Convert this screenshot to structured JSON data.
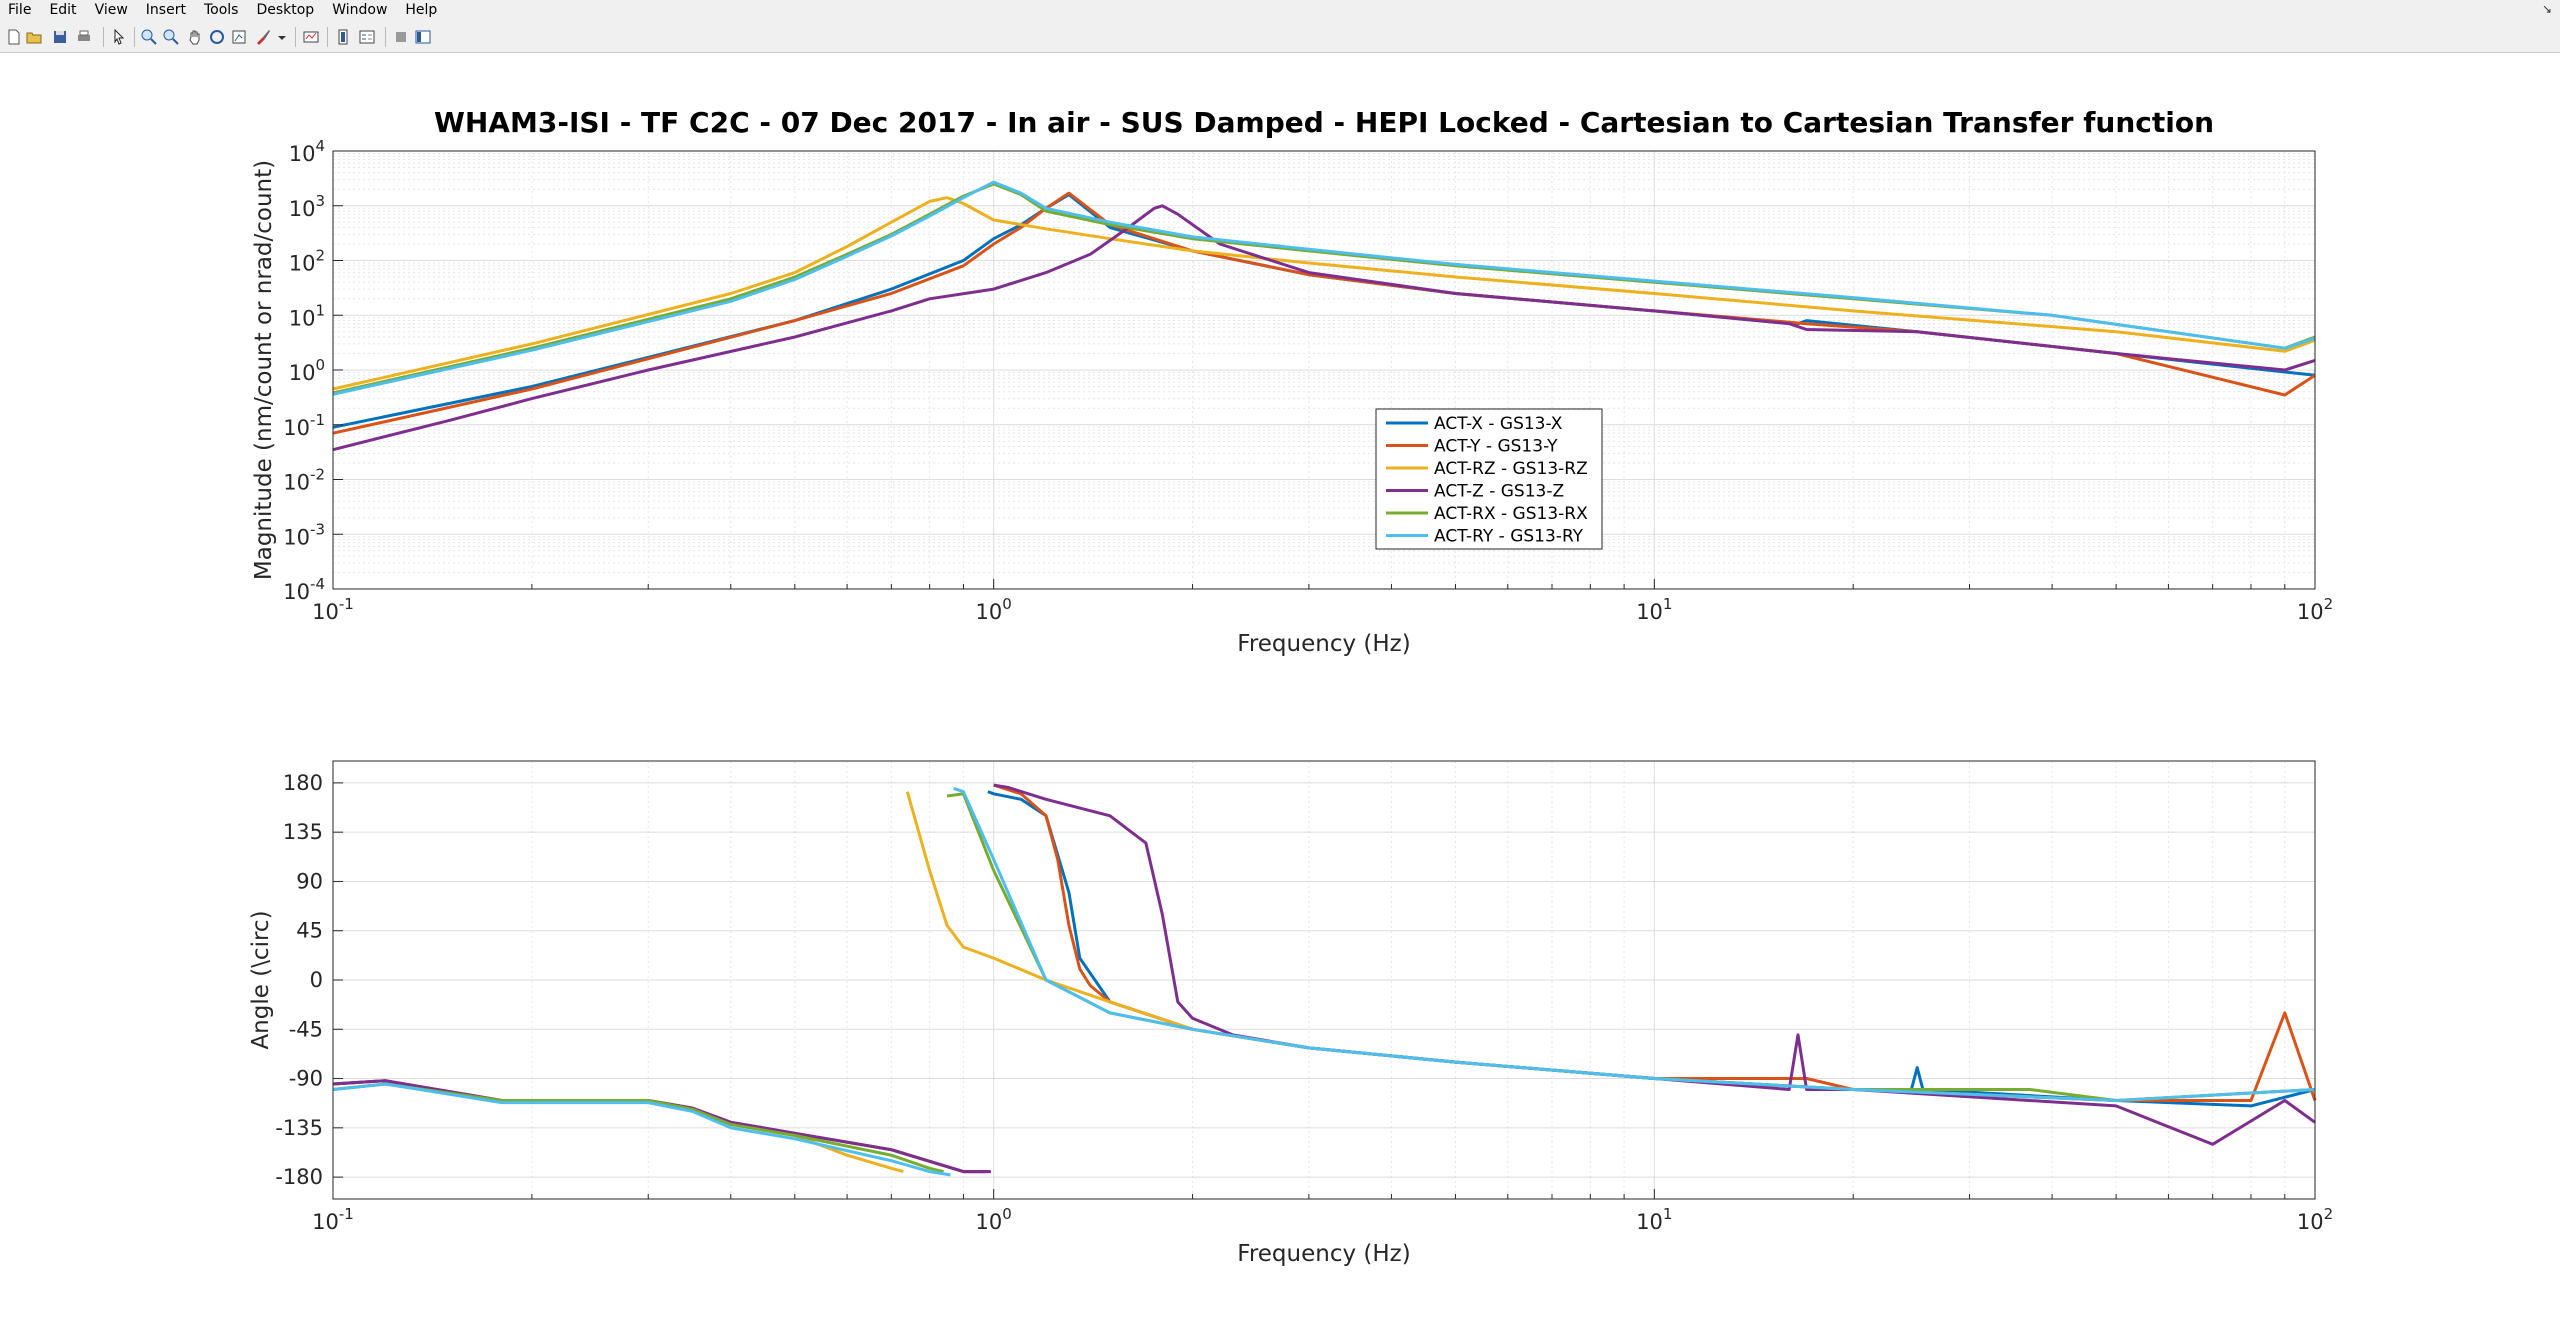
{
  "menubar": {
    "items": [
      {
        "label": "File"
      },
      {
        "label": "Edit"
      },
      {
        "label": "View"
      },
      {
        "label": "Insert"
      },
      {
        "label": "Tools"
      },
      {
        "label": "Desktop"
      },
      {
        "label": "Window"
      },
      {
        "label": "Help"
      }
    ]
  },
  "toolbar": {
    "icons": [
      "new-figure-icon",
      "open-file-icon",
      "save-icon",
      "print-icon",
      "pointer-icon",
      "zoom-in-icon",
      "zoom-out-icon",
      "pan-icon",
      "rotate-icon",
      "data-cursor-icon",
      "brush-icon",
      "link-plot-icon",
      "colorbar-icon",
      "legend-icon",
      "hide-plot-tools-icon",
      "show-plot-tools-icon"
    ]
  },
  "colors": {
    "s1": "#0072bd",
    "s2": "#d95319",
    "s3": "#edb120",
    "s4": "#7e2f8e",
    "s5": "#77ac30",
    "s6": "#4dbeee"
  },
  "chart_data": [
    {
      "type": "line",
      "title": "WHAM3-ISI - TF C2C - 07 Dec 2017 - In air - SUS Damped - HEPI Locked - Cartesian to Cartesian Transfer function",
      "xlabel": "Frequency (Hz)",
      "ylabel": "Magnitude (nm/count or nrad/count)",
      "xscale": "log",
      "yscale": "log",
      "xlim": [
        0.1,
        100
      ],
      "ylim": [
        0.0001,
        10000
      ],
      "xticks": [
        "10^-1",
        "10^0",
        "10^1",
        "10^2"
      ],
      "yticks": [
        "10^-4",
        "10^-3",
        "10^-2",
        "10^-1",
        "10^0",
        "10^1",
        "10^2",
        "10^3",
        "10^4"
      ],
      "grid": "on",
      "legend_position": "center",
      "series": [
        {
          "name": "ACT-X - GS13-X",
          "x": [
            0.1,
            0.2,
            0.5,
            0.7,
            0.9,
            1.0,
            1.1,
            1.2,
            1.3,
            1.5,
            2,
            3,
            5,
            10,
            16.5,
            17,
            25,
            50,
            100
          ],
          "y": [
            0.09,
            0.5,
            8,
            30,
            100,
            250,
            450,
            900,
            1600,
            400,
            150,
            55,
            25,
            12,
            7,
            8,
            5,
            2,
            0.8
          ]
        },
        {
          "name": "ACT-Y - GS13-Y",
          "x": [
            0.1,
            0.2,
            0.5,
            0.7,
            0.9,
            1.0,
            1.1,
            1.2,
            1.3,
            1.5,
            2,
            3,
            5,
            10,
            17,
            25,
            50,
            90,
            100
          ],
          "y": [
            0.07,
            0.45,
            8,
            25,
            80,
            200,
            400,
            900,
            1700,
            450,
            150,
            55,
            25,
            12,
            7,
            5,
            2,
            0.35,
            0.8
          ]
        },
        {
          "name": "ACT-RZ - GS13-RZ",
          "x": [
            0.1,
            0.2,
            0.4,
            0.5,
            0.6,
            0.7,
            0.8,
            0.85,
            0.9,
            1.0,
            1.2,
            1.5,
            2,
            3,
            5,
            10,
            20,
            50,
            90,
            100
          ],
          "y": [
            0.45,
            3,
            25,
            60,
            180,
            500,
            1200,
            1400,
            1100,
            550,
            380,
            250,
            150,
            90,
            50,
            25,
            12,
            5,
            2.2,
            3.5
          ]
        },
        {
          "name": "ACT-Z - GS13-Z",
          "x": [
            0.1,
            0.15,
            0.2,
            0.3,
            0.5,
            0.7,
            0.8,
            1.0,
            1.2,
            1.4,
            1.6,
            1.75,
            1.8,
            1.9,
            2.2,
            3,
            5,
            10,
            16,
            17,
            25,
            50,
            90,
            100
          ],
          "y": [
            0.035,
            0.12,
            0.3,
            1,
            4,
            12,
            20,
            30,
            60,
            130,
            400,
            900,
            1000,
            700,
            200,
            60,
            25,
            12,
            7,
            5.5,
            5,
            2,
            1,
            1.5
          ]
        },
        {
          "name": "ACT-RX - GS13-RX",
          "x": [
            0.1,
            0.2,
            0.4,
            0.5,
            0.6,
            0.7,
            0.8,
            0.9,
            1.0,
            1.1,
            1.2,
            1.5,
            2,
            3,
            5,
            10,
            20,
            40,
            90,
            100
          ],
          "y": [
            0.38,
            2.5,
            20,
            50,
            130,
            300,
            700,
            1500,
            2500,
            1600,
            800,
            450,
            250,
            150,
            80,
            40,
            20,
            10,
            2.5,
            4
          ]
        },
        {
          "name": "ACT-RY - GS13-RY",
          "x": [
            0.1,
            0.2,
            0.4,
            0.5,
            0.6,
            0.7,
            0.8,
            0.9,
            1.0,
            1.1,
            1.2,
            1.5,
            2,
            3,
            5,
            10,
            20,
            40,
            90,
            100
          ],
          "y": [
            0.36,
            2.3,
            18,
            45,
            120,
            280,
            650,
            1400,
            2700,
            1700,
            900,
            500,
            270,
            160,
            85,
            42,
            21,
            10,
            2.5,
            3.8
          ]
        }
      ]
    },
    {
      "type": "line",
      "title": "",
      "xlabel": "Frequency (Hz)",
      "ylabel": "Angle (\\circ)",
      "xscale": "log",
      "yscale": "linear",
      "xlim": [
        0.1,
        100
      ],
      "ylim": [
        -200,
        200
      ],
      "xticks": [
        "10^-1",
        "10^0",
        "10^1",
        "10^2"
      ],
      "yticks": [
        -180,
        -135,
        -90,
        -45,
        0,
        45,
        90,
        135,
        180
      ],
      "grid": "on",
      "series": [
        {
          "name": "ACT-X - GS13-X",
          "x": [
            0.1,
            0.12,
            0.18,
            0.3,
            0.35,
            0.4,
            0.5,
            0.7,
            0.9,
            0.97,
            0.98,
            1.0,
            1.1,
            1.2,
            1.3,
            1.35,
            1.5,
            2,
            3,
            5,
            10,
            20,
            24.5,
            25,
            25.5,
            50,
            80,
            100
          ],
          "y": [
            -95,
            -92,
            -110,
            -110,
            -117,
            -130,
            -140,
            -155,
            -175,
            -175,
            172,
            170,
            165,
            150,
            80,
            20,
            -20,
            -45,
            -62,
            -75,
            -90,
            -100,
            -100,
            -80,
            -100,
            -110,
            -115,
            -100
          ]
        },
        {
          "name": "ACT-Y - GS13-Y",
          "x": [
            0.1,
            0.12,
            0.18,
            0.3,
            0.35,
            0.4,
            0.5,
            0.7,
            0.9,
            0.99,
            1.0,
            1.1,
            1.2,
            1.25,
            1.3,
            1.35,
            1.4,
            1.5,
            2,
            3,
            5,
            10,
            17,
            20,
            50,
            80,
            90,
            100
          ],
          "y": [
            -95,
            -92,
            -110,
            -110,
            -117,
            -130,
            -140,
            -155,
            -175,
            -175,
            178,
            170,
            150,
            110,
            50,
            10,
            -5,
            -20,
            -45,
            -62,
            -75,
            -90,
            -90,
            -100,
            -110,
            -110,
            -30,
            -110
          ]
        },
        {
          "name": "ACT-RZ - GS13-RZ",
          "x": [
            0.1,
            0.12,
            0.18,
            0.3,
            0.35,
            0.4,
            0.5,
            0.6,
            0.7,
            0.73,
            0.74,
            0.8,
            0.85,
            0.9,
            1.0,
            1.2,
            1.5,
            2,
            3,
            5,
            10,
            20,
            50,
            100
          ],
          "y": [
            -100,
            -95,
            -110,
            -110,
            -118,
            -132,
            -142,
            -160,
            -172,
            -175,
            172,
            100,
            50,
            30,
            20,
            0,
            -20,
            -45,
            -62,
            -75,
            -90,
            -100,
            -110,
            -100
          ]
        },
        {
          "name": "ACT-Z - GS13-Z",
          "x": [
            0.1,
            0.12,
            0.18,
            0.3,
            0.35,
            0.4,
            0.5,
            0.7,
            0.9,
            0.99,
            1.0,
            1.05,
            1.2,
            1.5,
            1.7,
            1.8,
            1.9,
            2,
            2.3,
            3,
            5,
            10,
            16,
            16.5,
            17,
            17.5,
            20,
            50,
            70,
            90,
            100
          ],
          "y": [
            -95,
            -92,
            -110,
            -110,
            -117,
            -130,
            -140,
            -155,
            -175,
            -175,
            178,
            176,
            165,
            150,
            125,
            60,
            -20,
            -35,
            -50,
            -62,
            -75,
            -90,
            -100,
            -50,
            -100,
            -100,
            -100,
            -115,
            -150,
            -110,
            -130
          ]
        },
        {
          "name": "ACT-RX - GS13-RX",
          "x": [
            0.1,
            0.12,
            0.18,
            0.3,
            0.35,
            0.4,
            0.5,
            0.7,
            0.8,
            0.84,
            0.85,
            0.9,
            1.0,
            1.2,
            1.5,
            2,
            3,
            5,
            10,
            20,
            37,
            50,
            100
          ],
          "y": [
            -100,
            -95,
            -110,
            -110,
            -118,
            -132,
            -142,
            -160,
            -172,
            -175,
            168,
            170,
            100,
            0,
            -30,
            -45,
            -62,
            -75,
            -90,
            -100,
            -100,
            -110,
            -100
          ]
        },
        {
          "name": "ACT-RY - GS13-RY",
          "x": [
            0.1,
            0.12,
            0.18,
            0.3,
            0.35,
            0.4,
            0.5,
            0.7,
            0.8,
            0.86,
            0.87,
            0.9,
            1.0,
            1.2,
            1.5,
            2,
            3,
            5,
            10,
            20,
            50,
            100
          ],
          "y": [
            -100,
            -95,
            -112,
            -112,
            -120,
            -135,
            -145,
            -165,
            -175,
            -178,
            175,
            172,
            110,
            0,
            -30,
            -45,
            -62,
            -75,
            -90,
            -100,
            -110,
            -100
          ]
        }
      ]
    }
  ]
}
